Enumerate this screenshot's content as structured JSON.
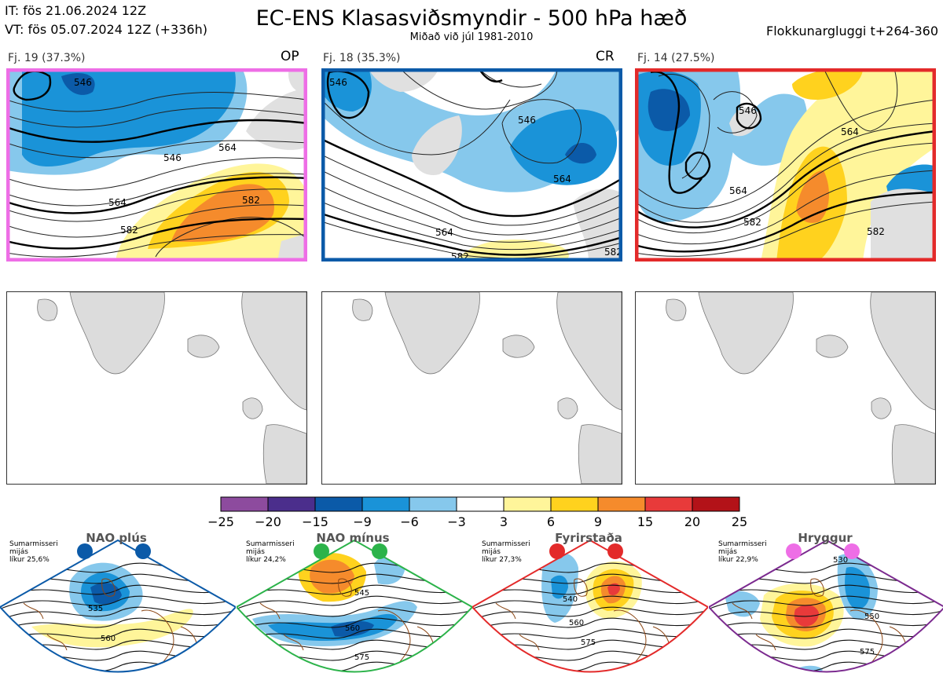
{
  "header": {
    "init_time": "IT: fös 21.06.2024 12Z",
    "valid_time": "VT: fös 05.07.2024 12Z  (+336h)",
    "title": "EC-ENS Klasasviðsmyndir - 500 hPa hæð",
    "subtitle": "Miðað við júl 1981-2010",
    "window": "Flokkunargluggi t+264-360"
  },
  "panels": [
    {
      "label": "Fj. 19 (37.3%)",
      "tag": "OP",
      "border_color": "#ee6ee6",
      "contours": [
        "546",
        "564",
        "582",
        "546",
        "564",
        "582"
      ]
    },
    {
      "label": "Fj. 18 (35.3%)",
      "tag": "CR",
      "border_color": "#0b5aa8",
      "contours": [
        "546",
        "564",
        "582",
        "546",
        "564",
        "582"
      ]
    },
    {
      "label": "Fj. 14 (27.5%)",
      "tag": "",
      "border_color": "#e32a2a",
      "contours": [
        "546",
        "564",
        "582",
        "564",
        "582"
      ]
    }
  ],
  "colorbar": {
    "ticks": [
      "−25",
      "−20",
      "−15",
      "−9",
      "−6",
      "−3",
      "3",
      "6",
      "9",
      "15",
      "20",
      "25"
    ],
    "colors": [
      "#8d4b9e",
      "#4b2e8c",
      "#0b5aa8",
      "#1a93d8",
      "#86c8ec",
      "#ffffff",
      "#fff59a",
      "#ffd21e",
      "#f58b2c",
      "#e83a3a",
      "#b31218"
    ]
  },
  "regimes": [
    {
      "name": "NAO plús",
      "note_lines": [
        "Sumarmisseri",
        "mijás",
        "líkur 25,6%"
      ],
      "dot_color": "#0b5aa8",
      "border_color": "#0b5aa8",
      "labels": [
        "535",
        "560"
      ]
    },
    {
      "name": "NAO mínus",
      "note_lines": [
        "Sumarmisseri",
        "mijás",
        "líkur 24,2%"
      ],
      "dot_color": "#2cb34a",
      "border_color": "#2cb34a",
      "labels": [
        "545",
        "560",
        "575"
      ]
    },
    {
      "name": "Fyrirstaða",
      "note_lines": [
        "Sumarmisseri",
        "mijás",
        "líkur 27,3%"
      ],
      "dot_color": "#e32a2a",
      "border_color": "#e32a2a",
      "labels": [
        "540",
        "560",
        "575"
      ]
    },
    {
      "name": "Hryggur",
      "note_lines": [
        "Sumarmisseri",
        "mijás",
        "líkur 22,9%"
      ],
      "dot_color": "#ee6ee6",
      "border_color": "#7b2a8f",
      "labels": [
        "530",
        "550",
        "575"
      ]
    }
  ]
}
